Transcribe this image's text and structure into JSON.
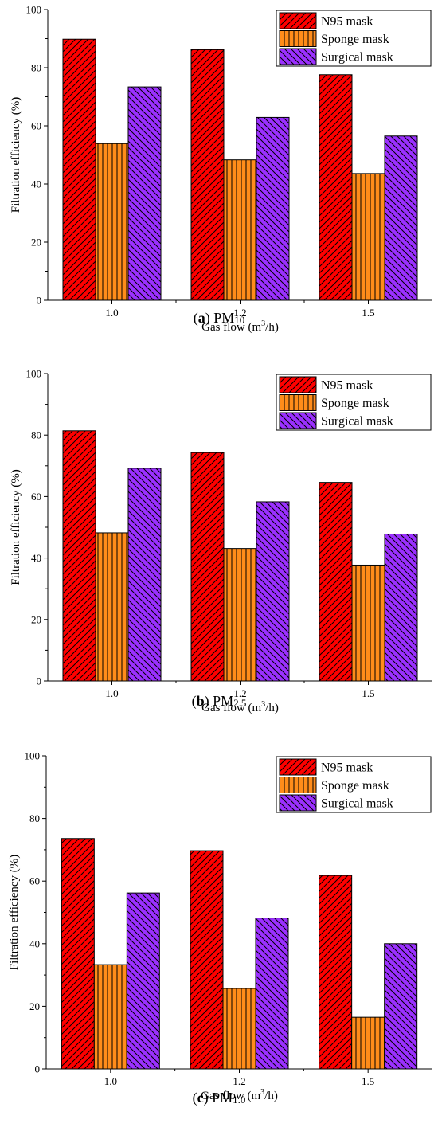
{
  "colors": {
    "n95": "#ff0000",
    "sponge": "#ff8c1a",
    "surgical": "#9b30ff"
  },
  "chart_data": [
    {
      "type": "bar",
      "caption": {
        "letter": "a",
        "prefix": "PM",
        "sub": "10"
      },
      "categories": [
        "1.0",
        "1.2",
        "1.5"
      ],
      "series": [
        {
          "name": "N95 mask",
          "values": [
            89.8,
            86.2,
            77.6
          ]
        },
        {
          "name": "Sponge mask",
          "values": [
            53.9,
            48.3,
            43.6
          ]
        },
        {
          "name": "Surgical mask",
          "values": [
            73.4,
            62.9,
            56.5
          ]
        }
      ],
      "xlabel": {
        "text": "Gas flow (m",
        "sup": "3",
        "tail": "/h)"
      },
      "ylabel": "Filtration efficiency (%)",
      "ylim": [
        0,
        100
      ],
      "yticks": [
        0,
        20,
        40,
        60,
        80,
        100
      ],
      "legend": "top-right"
    },
    {
      "type": "bar",
      "caption": {
        "letter": "b",
        "prefix": "PM",
        "sub": "2.5"
      },
      "categories": [
        "1.0",
        "1.2",
        "1.5"
      ],
      "series": [
        {
          "name": "N95 mask",
          "values": [
            81.4,
            74.3,
            64.6
          ]
        },
        {
          "name": "Sponge mask",
          "values": [
            48.2,
            43.1,
            37.7
          ]
        },
        {
          "name": "Surgical mask",
          "values": [
            69.2,
            58.3,
            47.8
          ]
        }
      ],
      "xlabel": {
        "text": "Gas flow (m",
        "sup": "3",
        "tail": "/h)"
      },
      "ylabel": "Filtration efficiency (%)",
      "ylim": [
        0,
        100
      ],
      "yticks": [
        0,
        20,
        40,
        60,
        80,
        100
      ],
      "legend": "top-right"
    },
    {
      "type": "bar",
      "caption": {
        "letter": "c",
        "prefix": "PM",
        "sub": "1.0"
      },
      "categories": [
        "1.0",
        "1.2",
        "1.5"
      ],
      "series": [
        {
          "name": "N95 mask",
          "values": [
            73.6,
            69.7,
            61.8
          ]
        },
        {
          "name": "Sponge mask",
          "values": [
            33.3,
            25.7,
            16.5
          ]
        },
        {
          "name": "Surgical mask",
          "values": [
            56.2,
            48.2,
            40.0
          ]
        }
      ],
      "xlabel": {
        "text": "Gas flow (m",
        "sup": "3",
        "tail": "/h)"
      },
      "ylabel": "Filtration efficiency (%)",
      "ylim": [
        0,
        100
      ],
      "yticks": [
        0,
        20,
        40,
        60,
        80,
        100
      ],
      "legend": "top-right"
    }
  ]
}
